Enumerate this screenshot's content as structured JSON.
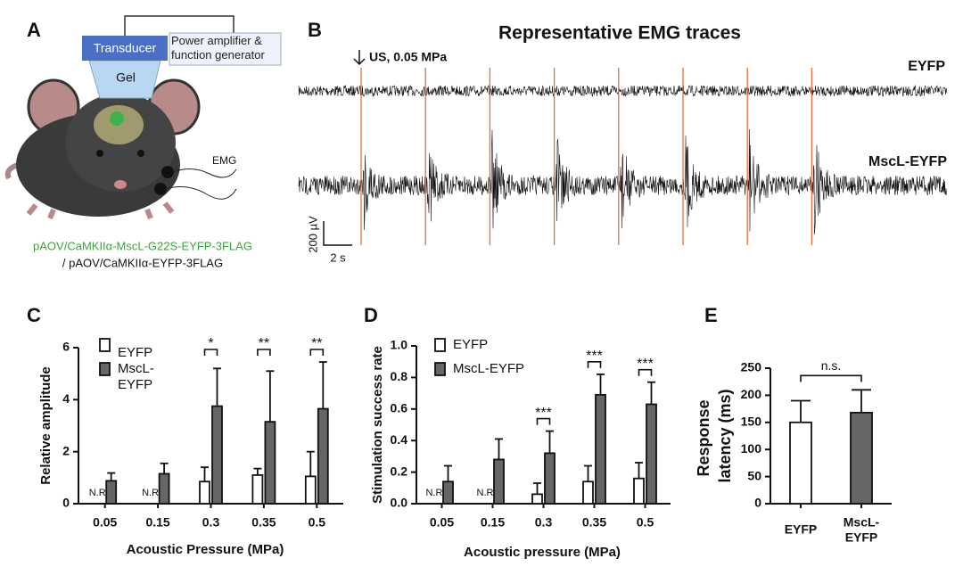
{
  "figure": {
    "panel_a": {
      "label": "A",
      "transducer": "Transducer",
      "generator": "Power amplifier & function generator",
      "gel": "Gel",
      "emg": "EMG",
      "construct_mscl": "pAOV/CaMKIIα-MscL-G22S-EYFP-3FLAG",
      "construct_eyfp": "/ pAOV/CaMKIIα-EYFP-3FLAG"
    },
    "panel_b": {
      "label": "B",
      "title": "Representative EMG traces",
      "stimulus": "US, 0.05 MPa",
      "traces": [
        "EYFP",
        "MscL-EYFP"
      ],
      "scale_y": "200 µV",
      "scale_x": "2 s"
    }
  },
  "chart_data": [
    {
      "type": "bar",
      "label": "C",
      "ylabel": "Relative amplitude",
      "xlabel": "Acoustic Pressure (MPa)",
      "categories": [
        "0.05",
        "0.15",
        "0.3",
        "0.35",
        "0.5"
      ],
      "series": [
        {
          "name": "EYFP",
          "color": "#ffffff",
          "values": [
            null,
            null,
            0.85,
            1.1,
            1.05
          ],
          "value_labels": [
            "N.R.",
            "N.R.",
            null,
            null,
            null
          ],
          "errors": [
            null,
            null,
            0.55,
            0.25,
            0.95
          ]
        },
        {
          "name": "MscL-EYFP",
          "color": "#666666",
          "values": [
            0.88,
            1.15,
            3.75,
            3.15,
            3.65
          ],
          "errors": [
            0.3,
            0.4,
            1.45,
            1.95,
            1.8
          ]
        }
      ],
      "significance": [
        {
          "category": 2,
          "label": "*"
        },
        {
          "category": 3,
          "label": "**"
        },
        {
          "category": 4,
          "label": "**"
        }
      ],
      "ylim": [
        0,
        6
      ],
      "yticks": [
        0,
        2,
        4,
        6
      ]
    },
    {
      "type": "bar",
      "label": "D",
      "ylabel": "Stimulation success rate",
      "xlabel": "Acoustic pressure (MPa)",
      "categories": [
        "0.05",
        "0.15",
        "0.3",
        "0.35",
        "0.5"
      ],
      "series": [
        {
          "name": "EYFP",
          "color": "#ffffff",
          "values": [
            null,
            null,
            0.06,
            0.14,
            0.16
          ],
          "value_labels": [
            "N.R.",
            "N.R.",
            null,
            null,
            null
          ],
          "errors": [
            null,
            null,
            0.07,
            0.1,
            0.1
          ]
        },
        {
          "name": "MscL-EYFP",
          "color": "#666666",
          "values": [
            0.14,
            0.28,
            0.32,
            0.69,
            0.63
          ],
          "errors": [
            0.1,
            0.13,
            0.14,
            0.13,
            0.14
          ]
        }
      ],
      "significance": [
        {
          "category": 2,
          "label": "***"
        },
        {
          "category": 3,
          "label": "***"
        },
        {
          "category": 4,
          "label": "***"
        }
      ],
      "ylim": [
        0,
        1
      ],
      "yticks": [
        {
          "value": 0,
          "label": "0.0"
        },
        0.2,
        0.4,
        0.6,
        0.8,
        {
          "value": 1,
          "label": "1.0"
        }
      ]
    },
    {
      "type": "bar",
      "label": "E",
      "ylabel": "Response latency (ms)",
      "categories": [
        "EYFP",
        "MscL-EYFP"
      ],
      "values": [
        150,
        168
      ],
      "errors": [
        40,
        42
      ],
      "colors": [
        "#ffffff",
        "#666666"
      ],
      "comparison": "n.s.",
      "ylim": [
        0,
        250
      ],
      "yticks": [
        0,
        50,
        100,
        150,
        200,
        250
      ]
    }
  ]
}
